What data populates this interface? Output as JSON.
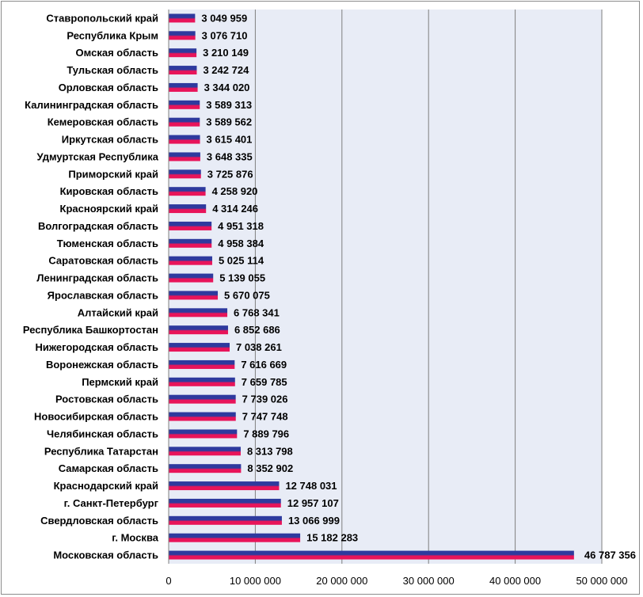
{
  "chart_data": {
    "type": "bar",
    "orientation": "horizontal",
    "title": "",
    "xlabel": "",
    "ylabel": "",
    "xlim": [
      0,
      50000000
    ],
    "x_ticks": [
      0,
      10000000,
      20000000,
      30000000,
      40000000,
      50000000
    ],
    "x_tick_labels": [
      "0",
      "10 000 000",
      "20 000 000",
      "30 000 000",
      "40 000 000",
      "50 000 000"
    ],
    "grid": "vertical",
    "plot_background": "#e8ecf6",
    "bar_colors": {
      "top": "#2e3a9e",
      "bottom": "#e8145a"
    },
    "categories": [
      "Ставропольский край",
      "Республика Крым",
      "Омская область",
      "Тульская область",
      "Орловская область",
      "Калининградская область",
      "Кемеровская область",
      "Иркутская область",
      "Удмуртская Республика",
      "Приморский край",
      "Кировская область",
      "Красноярский край",
      "Волгоградская область",
      "Тюменская область",
      "Саратовская область",
      "Ленинградская область",
      "Ярославская область",
      "Алтайский край",
      "Республика Башкортостан",
      "Нижегородская область",
      "Воронежская область",
      "Пермский край",
      "Ростовская область",
      "Новосибирская область",
      "Челябинская область",
      "Республика Татарстан",
      "Самарская область",
      "Краснодарский край",
      "г. Санкт-Петербург",
      "Свердловская область",
      "г. Москва",
      "Московская область"
    ],
    "values": [
      3049959,
      3076710,
      3210149,
      3242724,
      3344020,
      3589313,
      3589562,
      3615401,
      3648335,
      3725876,
      4258920,
      4314246,
      4951318,
      4958384,
      5025114,
      5139055,
      5670075,
      6768341,
      6852686,
      7038261,
      7616669,
      7659785,
      7739026,
      7747748,
      7889796,
      8313798,
      8352902,
      12748031,
      12957107,
      13066999,
      15182283,
      46787356
    ],
    "value_labels": [
      "3 049 959",
      "3 076 710",
      "3 210 149",
      "3 242 724",
      "3 344 020",
      "3 589 313",
      "3 589 562",
      "3 615 401",
      "3 648 335",
      "3 725 876",
      "4 258 920",
      "4 314 246",
      "4 951 318",
      "4 958 384",
      "5 025 114",
      "5 139 055",
      "5 670 075",
      "6 768 341",
      "6 852 686",
      "7 038 261",
      "7 616 669",
      "7 659 785",
      "7 739 026",
      "7 747 748",
      "7 889 796",
      "8 313 798",
      "8 352 902",
      "12 748 031",
      "12 957 107",
      "13 066 999",
      "15 182 283",
      "46 787 356"
    ]
  }
}
